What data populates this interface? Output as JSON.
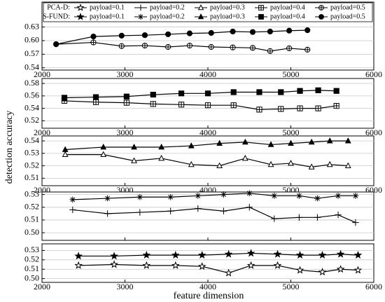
{
  "xlabel": "feature dimension",
  "ylabel": "detection accuracy",
  "legend_rows": [
    "PCA-D:",
    "S-FUND:"
  ],
  "chart_data": [
    {
      "type": "line",
      "xlim": [
        2000,
        6000
      ],
      "xticks": [
        2000,
        3000,
        4000,
        5000,
        6000
      ],
      "show_xticklabels": true,
      "ylim": [
        0.535,
        0.685
      ],
      "yticks": [
        0.54,
        0.57,
        {
          "value": 0.6,
          "label": "0.60"
        },
        0.63
      ],
      "grid": true,
      "x": [
        2170,
        2620,
        2960,
        3240,
        3520,
        3780,
        4040,
        4300,
        4540,
        4750,
        4980,
        5200
      ],
      "series": [
        {
          "name": "payload=0.5",
          "color": "#000000",
          "marker": "circle-plus",
          "values": [
            0.592,
            0.596,
            0.588,
            0.589,
            0.586,
            0.589,
            0.586,
            0.585,
            0.584,
            0.577,
            0.583,
            0.58
          ]
        },
        {
          "name": "payload=0.5",
          "color": "#000000",
          "marker": "circle",
          "values": [
            0.592,
            0.609,
            0.611,
            0.612,
            0.614,
            0.616,
            0.617,
            0.62,
            0.619,
            0.62,
            0.622,
            0.623
          ]
        }
      ]
    },
    {
      "type": "line",
      "xlim": [
        2000,
        6000
      ],
      "xticks": [
        2000,
        3000,
        4000,
        5000,
        6000
      ],
      "show_xticklabels": true,
      "ylim": [
        0.508,
        0.588
      ],
      "yticks": [
        0.52,
        0.54,
        0.56,
        0.58
      ],
      "grid": true,
      "x": [
        2270,
        2650,
        3020,
        3340,
        3680,
        4000,
        4310,
        4620,
        4880,
        5110,
        5330,
        5550
      ],
      "series": [
        {
          "name": "payload=0.4",
          "color": "#000000",
          "marker": "square-plus",
          "values": [
            0.552,
            0.55,
            0.549,
            0.547,
            0.546,
            0.545,
            0.545,
            0.538,
            0.539,
            0.54,
            0.54,
            0.544
          ]
        },
        {
          "name": "payload=0.4",
          "color": "#000000",
          "marker": "square",
          "values": [
            0.557,
            0.558,
            0.559,
            0.562,
            0.564,
            0.564,
            0.566,
            0.566,
            0.566,
            0.568,
            0.569,
            0.568
          ]
        }
      ]
    },
    {
      "type": "line",
      "xlim": [
        2000,
        6000
      ],
      "xticks": [
        2000,
        3000,
        4000,
        5000,
        6000
      ],
      "show_xticklabels": true,
      "ylim": [
        0.504,
        0.544
      ],
      "yticks": [
        0.51,
        0.52,
        0.53,
        0.54
      ],
      "grid": true,
      "x": [
        2280,
        2740,
        3110,
        3440,
        3800,
        4140,
        4450,
        4760,
        5000,
        5250,
        5470,
        5690
      ],
      "series": [
        {
          "name": "payload=0.3",
          "color": "#000000",
          "marker": "triangle-open",
          "values": [
            0.529,
            0.529,
            0.524,
            0.526,
            0.521,
            0.52,
            0.526,
            0.521,
            0.522,
            0.519,
            0.521,
            0.52
          ]
        },
        {
          "name": "payload=0.3",
          "color": "#000000",
          "marker": "triangle",
          "values": [
            0.533,
            0.535,
            0.535,
            0.535,
            0.536,
            0.538,
            0.539,
            0.537,
            0.538,
            0.539,
            0.54,
            0.54
          ]
        }
      ]
    },
    {
      "type": "line",
      "xlim": [
        2000,
        6000
      ],
      "xticks": [
        2000,
        3000,
        4000,
        5000,
        6000
      ],
      "show_xticklabels": false,
      "ylim": [
        0.494,
        0.532
      ],
      "yticks": [
        {
          "value": 0.5,
          "label": "0.50"
        },
        0.51,
        0.52,
        0.53
      ],
      "grid": true,
      "x": [
        2370,
        2790,
        3180,
        3550,
        3880,
        4190,
        4500,
        4800,
        5100,
        5320,
        5570,
        5780
      ],
      "series": [
        {
          "name": "payload=0.2",
          "color": "#000000",
          "marker": "plus",
          "values": [
            0.518,
            0.515,
            0.516,
            0.517,
            0.519,
            0.517,
            0.52,
            0.511,
            0.512,
            0.512,
            0.514,
            0.508
          ]
        },
        {
          "name": "payload=0.2",
          "color": "#000000",
          "marker": "asterisk",
          "values": [
            0.526,
            0.527,
            0.528,
            0.528,
            0.529,
            0.53,
            0.531,
            0.529,
            0.529,
            0.527,
            0.529,
            0.529
          ]
        }
      ]
    },
    {
      "type": "line",
      "xlim": [
        2000,
        6000
      ],
      "xticks": [
        2000,
        3000,
        4000,
        5000,
        6000
      ],
      "show_xticklabels": true,
      "ylim": [
        0.496,
        0.537
      ],
      "yticks": [
        {
          "value": 0.5,
          "label": "0.50"
        },
        0.51,
        0.52,
        0.53
      ],
      "grid": true,
      "x": [
        2440,
        2870,
        3260,
        3610,
        3930,
        4250,
        4520,
        4840,
        5110,
        5380,
        5600,
        5810
      ],
      "series": [
        {
          "name": "payload=0.1",
          "color": "#000000",
          "marker": "star-open",
          "values": [
            0.514,
            0.515,
            0.514,
            0.514,
            0.513,
            0.506,
            0.514,
            0.514,
            0.509,
            0.507,
            0.51,
            0.509
          ]
        },
        {
          "name": "payload=0.1",
          "color": "#000000",
          "marker": "star",
          "values": [
            0.524,
            0.524,
            0.525,
            0.525,
            0.525,
            0.526,
            0.527,
            0.526,
            0.525,
            0.525,
            0.526,
            0.525
          ]
        }
      ]
    }
  ]
}
